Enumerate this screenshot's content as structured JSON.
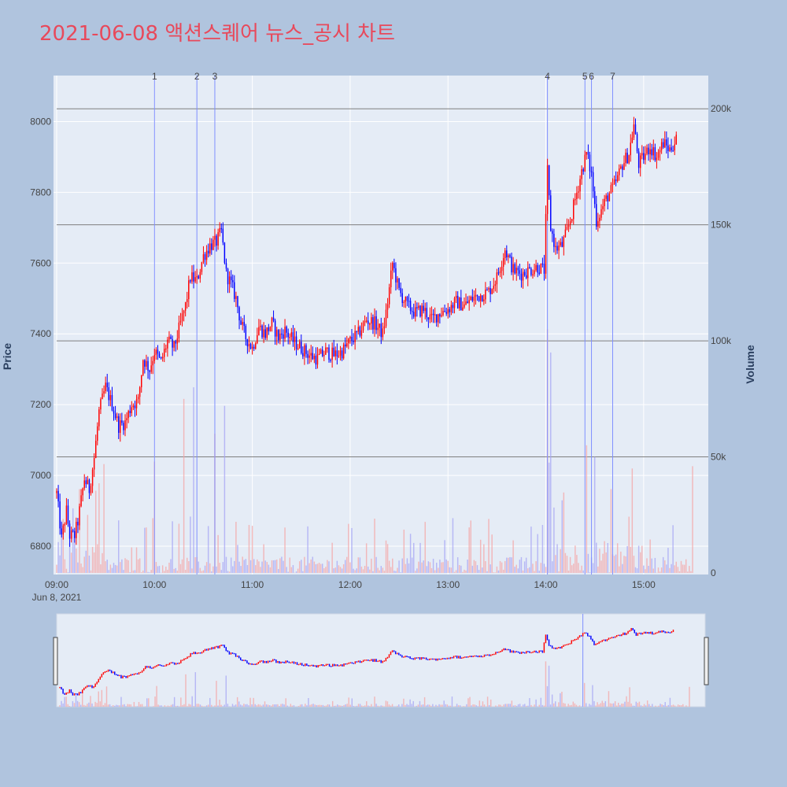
{
  "title": "2021-06-08 액션스퀘어 뉴스_공시 차트",
  "colors": {
    "background": "#b0c4de",
    "plot_bg": "#e5ecf6",
    "up": "#ff0000",
    "down": "#0000ff",
    "title": "#e8495b",
    "vline": "#7f8fff",
    "hline": "#7f7f7f"
  },
  "chart_data": {
    "type": "candlestick",
    "x_start": "09:00",
    "x_end": "15:30",
    "x_ticks": [
      "09:00",
      "10:00",
      "11:00",
      "12:00",
      "13:00",
      "14:00",
      "15:00"
    ],
    "x_date_label": "Jun 8, 2021",
    "y_label": "Price",
    "y_ticks": [
      6800,
      7000,
      7200,
      7400,
      7600,
      7800,
      8000
    ],
    "ylim": [
      6720,
      8130
    ],
    "y2_label": "Volume",
    "y2_ticks": [
      0,
      50000,
      100000,
      150000,
      200000
    ],
    "y2_tick_labels": [
      "0",
      "50k",
      "100k",
      "150k",
      "200k"
    ],
    "y2lim": [
      0,
      215000
    ],
    "news_markers": [
      {
        "label": "1",
        "time": "10:00"
      },
      {
        "label": "2",
        "time": "10:26"
      },
      {
        "label": "3",
        "time": "10:37"
      },
      {
        "label": "4",
        "time": "14:01"
      },
      {
        "label": "5",
        "time": "14:24"
      },
      {
        "label": "6",
        "time": "14:28"
      },
      {
        "label": "7",
        "time": "14:41"
      }
    ],
    "price_path": [
      [
        "09:00",
        6950
      ],
      [
        "09:03",
        6820
      ],
      [
        "09:06",
        6900
      ],
      [
        "09:08",
        6830
      ],
      [
        "09:11",
        6830
      ],
      [
        "09:13",
        6870
      ],
      [
        "09:17",
        6990
      ],
      [
        "09:20",
        6960
      ],
      [
        "09:23",
        7050
      ],
      [
        "09:26",
        7180
      ],
      [
        "09:30",
        7250
      ],
      [
        "09:34",
        7200
      ],
      [
        "09:38",
        7140
      ],
      [
        "09:42",
        7150
      ],
      [
        "09:46",
        7200
      ],
      [
        "09:50",
        7210
      ],
      [
        "09:53",
        7330
      ],
      [
        "09:57",
        7300
      ],
      [
        "10:00",
        7350
      ],
      [
        "10:04",
        7320
      ],
      [
        "10:08",
        7380
      ],
      [
        "10:12",
        7360
      ],
      [
        "10:16",
        7430
      ],
      [
        "10:19",
        7480
      ],
      [
        "10:22",
        7560
      ],
      [
        "10:26",
        7550
      ],
      [
        "10:30",
        7620
      ],
      [
        "10:34",
        7650
      ],
      [
        "10:38",
        7660
      ],
      [
        "10:41",
        7690
      ],
      [
        "10:44",
        7570
      ],
      [
        "10:47",
        7540
      ],
      [
        "10:50",
        7500
      ],
      [
        "10:53",
        7430
      ],
      [
        "10:56",
        7390
      ],
      [
        "11:00",
        7360
      ],
      [
        "11:04",
        7420
      ],
      [
        "11:08",
        7400
      ],
      [
        "11:12",
        7430
      ],
      [
        "11:16",
        7390
      ],
      [
        "11:20",
        7410
      ],
      [
        "11:25",
        7380
      ],
      [
        "11:30",
        7360
      ],
      [
        "11:35",
        7340
      ],
      [
        "11:40",
        7330
      ],
      [
        "11:45",
        7350
      ],
      [
        "11:50",
        7340
      ],
      [
        "11:55",
        7350
      ],
      [
        "12:00",
        7380
      ],
      [
        "12:05",
        7400
      ],
      [
        "12:10",
        7440
      ],
      [
        "12:15",
        7430
      ],
      [
        "12:20",
        7400
      ],
      [
        "12:23",
        7490
      ],
      [
        "12:26",
        7600
      ],
      [
        "12:30",
        7520
      ],
      [
        "12:35",
        7480
      ],
      [
        "12:40",
        7460
      ],
      [
        "12:45",
        7470
      ],
      [
        "12:50",
        7440
      ],
      [
        "12:55",
        7460
      ],
      [
        "13:00",
        7470
      ],
      [
        "13:05",
        7490
      ],
      [
        "13:10",
        7480
      ],
      [
        "13:15",
        7500
      ],
      [
        "13:20",
        7510
      ],
      [
        "13:25",
        7520
      ],
      [
        "13:30",
        7560
      ],
      [
        "13:35",
        7640
      ],
      [
        "13:40",
        7580
      ],
      [
        "13:45",
        7570
      ],
      [
        "13:50",
        7580
      ],
      [
        "13:55",
        7590
      ],
      [
        "13:59",
        7580
      ],
      [
        "14:01",
        7860
      ],
      [
        "14:03",
        7700
      ],
      [
        "14:06",
        7640
      ],
      [
        "14:10",
        7650
      ],
      [
        "14:13",
        7690
      ],
      [
        "14:16",
        7740
      ],
      [
        "14:19",
        7800
      ],
      [
        "14:22",
        7860
      ],
      [
        "14:25",
        7910
      ],
      [
        "14:28",
        7850
      ],
      [
        "14:31",
        7720
      ],
      [
        "14:34",
        7750
      ],
      [
        "14:38",
        7790
      ],
      [
        "14:41",
        7810
      ],
      [
        "14:44",
        7840
      ],
      [
        "14:47",
        7880
      ],
      [
        "14:51",
        7910
      ],
      [
        "14:54",
        7990
      ],
      [
        "14:57",
        7880
      ],
      [
        "15:00",
        7900
      ],
      [
        "15:04",
        7930
      ],
      [
        "15:08",
        7900
      ],
      [
        "15:12",
        7940
      ],
      [
        "15:16",
        7920
      ],
      [
        "15:20",
        7950
      ]
    ],
    "volume_spikes": [
      {
        "time": "10:00",
        "value": 48000
      },
      {
        "time": "10:18",
        "value": 75000
      },
      {
        "time": "10:24",
        "value": 80000
      },
      {
        "time": "10:37",
        "value": 60000
      },
      {
        "time": "10:43",
        "value": 72000
      },
      {
        "time": "14:01",
        "value": 105000
      },
      {
        "time": "14:03",
        "value": 95000
      },
      {
        "time": "14:25",
        "value": 55000
      },
      {
        "time": "14:30",
        "value": 50000
      },
      {
        "time": "14:53",
        "value": 45000
      },
      {
        "time": "15:30",
        "value": 46000
      }
    ]
  }
}
